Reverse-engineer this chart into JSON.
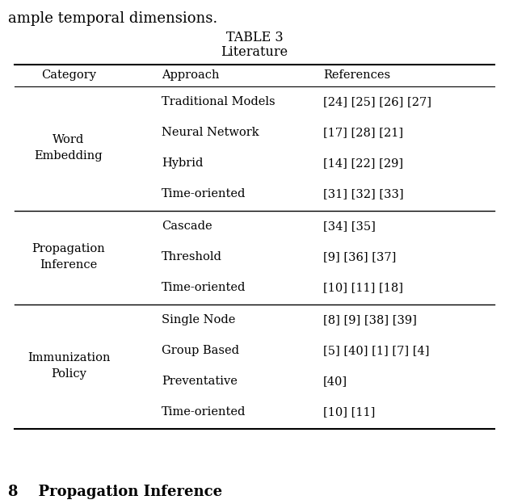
{
  "partial_text": "ample temporal dimensions.",
  "title_line1": "TABLE 3",
  "title_line2": "Literature",
  "header": [
    "Category",
    "Approach",
    "References"
  ],
  "sections": [
    {
      "category": "Word\nEmbedding",
      "rows": [
        [
          "Traditional Models",
          "[24] [25] [26] [27]"
        ],
        [
          "Neural Network",
          "[17] [28] [21]"
        ],
        [
          "Hybrid",
          "[14] [22] [29]"
        ],
        [
          "Time-oriented",
          "[31] [32] [33]"
        ]
      ]
    },
    {
      "category": "Propagation\nInference",
      "rows": [
        [
          "Cascade",
          "[34] [35]"
        ],
        [
          "Threshold",
          "[9] [36] [37]"
        ],
        [
          "Time-oriented",
          "[10] [11] [18]"
        ]
      ]
    },
    {
      "category": "Immunization\nPolicy",
      "rows": [
        [
          "Single Node",
          "[8] [9] [38] [39]"
        ],
        [
          "Group Based",
          "[5] [40] [1] [7] [4]"
        ],
        [
          "Preventative",
          "[40]"
        ],
        [
          "Time-oriented",
          "[10] [11]"
        ]
      ]
    }
  ],
  "bg_color": "#ffffff",
  "text_color": "#000000",
  "font_size": 10.5,
  "title_font_size": 11.5,
  "partial_font_size": 13
}
